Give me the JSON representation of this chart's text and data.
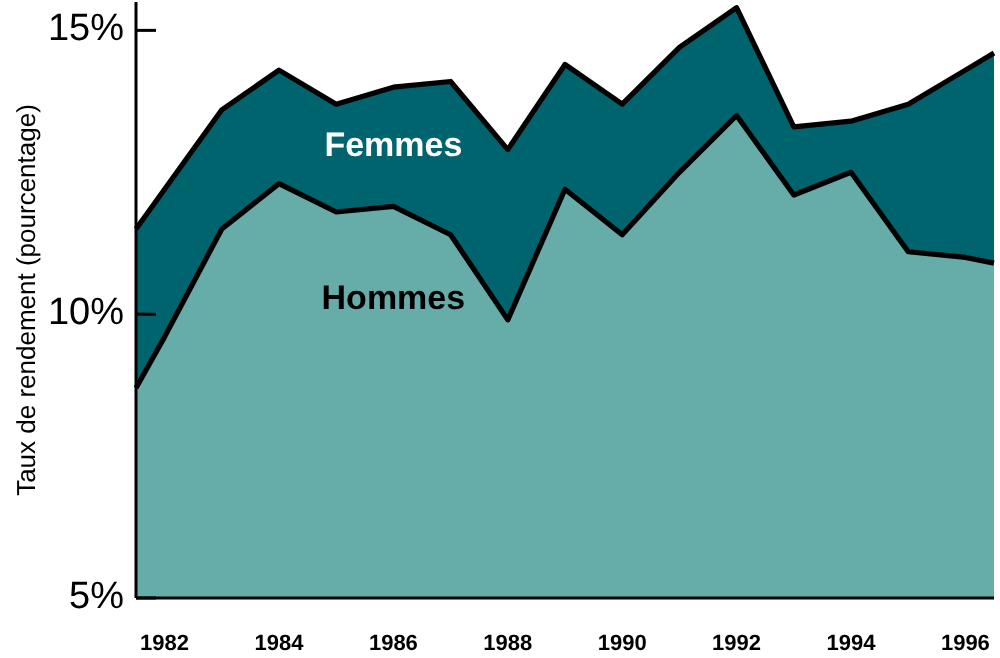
{
  "chart_data": {
    "type": "area",
    "ylabel": "Taux de rendement (pourcentage)",
    "x": [
      1981.5,
      1982,
      1983,
      1984,
      1985,
      1986,
      1987,
      1988,
      1989,
      1990,
      1991,
      1992,
      1993,
      1994,
      1995,
      1996,
      1996.5
    ],
    "xlim": [
      1981.5,
      1996.5
    ],
    "xticks": [
      1982,
      1984,
      1986,
      1988,
      1990,
      1992,
      1994,
      1996
    ],
    "ylim": [
      5,
      15.5
    ],
    "yticks": [
      {
        "value": 5,
        "label": "5%"
      },
      {
        "value": 10,
        "label": "10%"
      },
      {
        "value": 15,
        "label": "15%"
      }
    ],
    "series": [
      {
        "name": "Femmes",
        "color": "#00646e",
        "values": [
          11.5,
          12.2,
          13.6,
          14.3,
          13.7,
          14.0,
          14.1,
          12.9,
          14.4,
          13.7,
          14.7,
          15.4,
          13.3,
          13.4,
          13.7,
          14.3,
          14.6
        ]
      },
      {
        "name": "Hommes",
        "color": "#66aca8",
        "values": [
          8.7,
          9.6,
          11.5,
          12.3,
          11.8,
          11.9,
          11.4,
          9.9,
          12.2,
          11.4,
          12.5,
          13.5,
          12.1,
          12.5,
          11.1,
          11.0,
          10.9
        ]
      }
    ],
    "grid": false,
    "line_style": "solid",
    "marker": "none"
  }
}
